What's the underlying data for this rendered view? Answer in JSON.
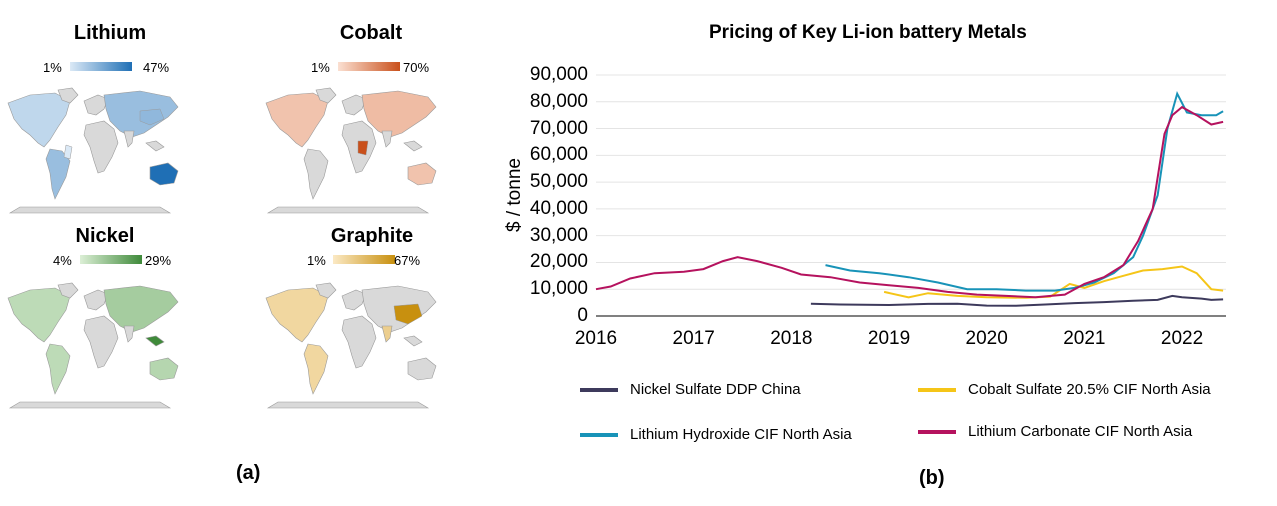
{
  "panel_a": {
    "label": "(a)",
    "maps": [
      {
        "key": "lithium",
        "title": "Lithium",
        "min": "1%",
        "max": "47%",
        "color_light": "#dbe9f6",
        "color_dark": "#1f6fb5"
      },
      {
        "key": "cobalt",
        "title": "Cobalt",
        "min": "1%",
        "max": "70%",
        "color_light": "#fbe0d2",
        "color_dark": "#c9501b"
      },
      {
        "key": "nickel",
        "title": "Nickel",
        "min": "4%",
        "max": "29%",
        "color_light": "#dcefd6",
        "color_dark": "#3f8a3a"
      },
      {
        "key": "graphite",
        "title": "Graphite",
        "min": "1%",
        "max": "67%",
        "color_light": "#fbe9c4",
        "color_dark": "#c8900f"
      }
    ]
  },
  "panel_b": {
    "label": "(b)"
  },
  "chart_data": {
    "type": "line",
    "title": "Pricing of Key Li-ion battery Metals",
    "ylabel": "$ / tonne",
    "xlabel": "",
    "ylim": [
      0,
      90000
    ],
    "xlim": [
      2016,
      2022.45
    ],
    "yticks": [
      "90,000",
      "80,000",
      "70,000",
      "60,000",
      "50,000",
      "40,000",
      "30,000",
      "20,000",
      "10,000",
      "0"
    ],
    "xticks": [
      "2016",
      "2017",
      "2018",
      "2019",
      "2020",
      "2021",
      "2022"
    ],
    "grid": "horizontal",
    "legend_position": "bottom",
    "series": [
      {
        "name": "Nickel Sulfate DDP China",
        "color": "#3d3a5c",
        "points": [
          [
            2018.2,
            4600
          ],
          [
            2018.5,
            4300
          ],
          [
            2019.0,
            4100
          ],
          [
            2019.4,
            4500
          ],
          [
            2019.7,
            4600
          ],
          [
            2020.0,
            3900
          ],
          [
            2020.3,
            3800
          ],
          [
            2020.6,
            4300
          ],
          [
            2020.9,
            4800
          ],
          [
            2021.2,
            5200
          ],
          [
            2021.5,
            5700
          ],
          [
            2021.75,
            6000
          ],
          [
            2021.9,
            7500
          ],
          [
            2022.0,
            7000
          ],
          [
            2022.2,
            6500
          ],
          [
            2022.3,
            6000
          ],
          [
            2022.42,
            6200
          ]
        ]
      },
      {
        "name": "Cobalt Sulfate 20.5% CIF North Asia",
        "color": "#f5c518",
        "points": [
          [
            2018.95,
            9000
          ],
          [
            2019.2,
            7000
          ],
          [
            2019.4,
            8500
          ],
          [
            2019.7,
            7500
          ],
          [
            2020.0,
            7000
          ],
          [
            2020.4,
            6800
          ],
          [
            2020.65,
            7200
          ],
          [
            2020.85,
            12000
          ],
          [
            2021.0,
            10500
          ],
          [
            2021.2,
            13000
          ],
          [
            2021.4,
            15000
          ],
          [
            2021.6,
            17000
          ],
          [
            2021.8,
            17500
          ],
          [
            2022.0,
            18500
          ],
          [
            2022.15,
            16000
          ],
          [
            2022.3,
            10000
          ],
          [
            2022.42,
            9500
          ]
        ]
      },
      {
        "name": "Lithium Hydroxide CIF North Asia",
        "color": "#1893b8",
        "points": [
          [
            2018.35,
            19000
          ],
          [
            2018.6,
            17000
          ],
          [
            2018.9,
            16000
          ],
          [
            2019.2,
            14500
          ],
          [
            2019.5,
            12500
          ],
          [
            2019.8,
            10000
          ],
          [
            2020.1,
            10000
          ],
          [
            2020.4,
            9500
          ],
          [
            2020.7,
            9500
          ],
          [
            2020.9,
            10500
          ],
          [
            2021.1,
            12500
          ],
          [
            2021.3,
            16000
          ],
          [
            2021.5,
            22000
          ],
          [
            2021.6,
            30000
          ],
          [
            2021.75,
            45000
          ],
          [
            2021.85,
            70000
          ],
          [
            2021.95,
            83000
          ],
          [
            2022.05,
            76000
          ],
          [
            2022.2,
            75000
          ],
          [
            2022.35,
            75000
          ],
          [
            2022.42,
            76500
          ]
        ]
      },
      {
        "name": "Lithium Carbonate CIF North Asia",
        "color": "#b5125e",
        "points": [
          [
            2016.0,
            10000
          ],
          [
            2016.15,
            11000
          ],
          [
            2016.35,
            14000
          ],
          [
            2016.6,
            16000
          ],
          [
            2016.9,
            16500
          ],
          [
            2017.1,
            17500
          ],
          [
            2017.3,
            20500
          ],
          [
            2017.45,
            22000
          ],
          [
            2017.65,
            20500
          ],
          [
            2017.9,
            18000
          ],
          [
            2018.1,
            15500
          ],
          [
            2018.4,
            14500
          ],
          [
            2018.7,
            12500
          ],
          [
            2019.0,
            11500
          ],
          [
            2019.3,
            10500
          ],
          [
            2019.6,
            9000
          ],
          [
            2019.9,
            8000
          ],
          [
            2020.2,
            7500
          ],
          [
            2020.5,
            7000
          ],
          [
            2020.8,
            8000
          ],
          [
            2021.0,
            12000
          ],
          [
            2021.2,
            14500
          ],
          [
            2021.4,
            19000
          ],
          [
            2021.55,
            28000
          ],
          [
            2021.7,
            40000
          ],
          [
            2021.82,
            68000
          ],
          [
            2021.9,
            75000
          ],
          [
            2022.0,
            78000
          ],
          [
            2022.15,
            75000
          ],
          [
            2022.3,
            71500
          ],
          [
            2022.42,
            72500
          ]
        ]
      }
    ]
  }
}
